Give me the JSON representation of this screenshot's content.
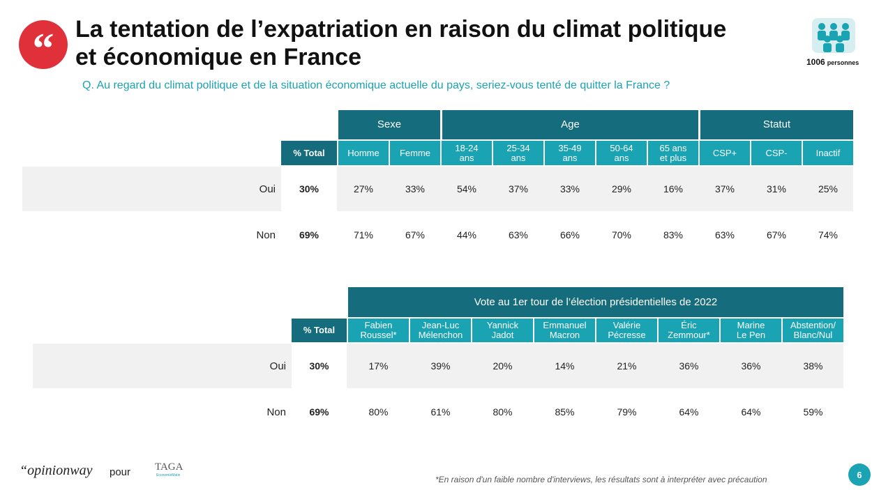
{
  "header": {
    "title": [
      "La tentation de l’expatriation en raison du climat politique",
      "et économique en France"
    ],
    "question": "Q. Au regard du climat politique et de la situation économique actuelle du pays, seriez-vous tenté de quitter la France ?",
    "sample": {
      "count": "1006",
      "label": "personnes"
    }
  },
  "table1": {
    "total_label": "% Total",
    "groups": [
      {
        "label": "Sexe",
        "columns": [
          "Homme",
          "Femme"
        ]
      },
      {
        "label": "Age",
        "columns": [
          "18-24\nans",
          "25-34\nans",
          "35-49\nans",
          "50-64\nans",
          "65 ans\net plus"
        ]
      },
      {
        "label": "Statut",
        "columns": [
          "CSP+",
          "CSP-",
          "Inactif"
        ]
      }
    ],
    "rows": [
      {
        "label": "Oui",
        "total": "30%",
        "values": [
          "27%",
          "33%",
          "54%",
          "37%",
          "33%",
          "29%",
          "16%",
          "37%",
          "31%",
          "25%"
        ]
      },
      {
        "label": "Non",
        "total": "69%",
        "values": [
          "71%",
          "67%",
          "44%",
          "63%",
          "66%",
          "70%",
          "83%",
          "63%",
          "67%",
          "74%"
        ]
      }
    ]
  },
  "table2": {
    "total_label": "% Total",
    "groups": [
      {
        "label": "Vote au 1er tour de l’élection présidentielles de 2022",
        "columns": [
          "Fabien\nRoussel*",
          "Jean-Luc\nMélenchon",
          "Yannick\nJadot",
          "Emmanuel\nMacron",
          "Valérie\nPécresse",
          "Éric\nZemmour*",
          "Marine\nLe Pen",
          "Abstention/\nBlanc/Nul"
        ]
      }
    ],
    "rows": [
      {
        "label": "Oui",
        "total": "30%",
        "values": [
          "17%",
          "39%",
          "20%",
          "14%",
          "21%",
          "36%",
          "36%",
          "38%"
        ]
      },
      {
        "label": "Non",
        "total": "69%",
        "values": [
          "80%",
          "61%",
          "80%",
          "85%",
          "79%",
          "64%",
          "64%",
          "59%"
        ]
      }
    ]
  },
  "footer": {
    "brand": "“opinionway",
    "for": "pour",
    "partner": "TAGA",
    "partner_sub": "EconomieMatin",
    "note": "*En raison d'un faible nombre d'interviews, les résultats sont à interpréter avec précaution",
    "page": "6"
  }
}
